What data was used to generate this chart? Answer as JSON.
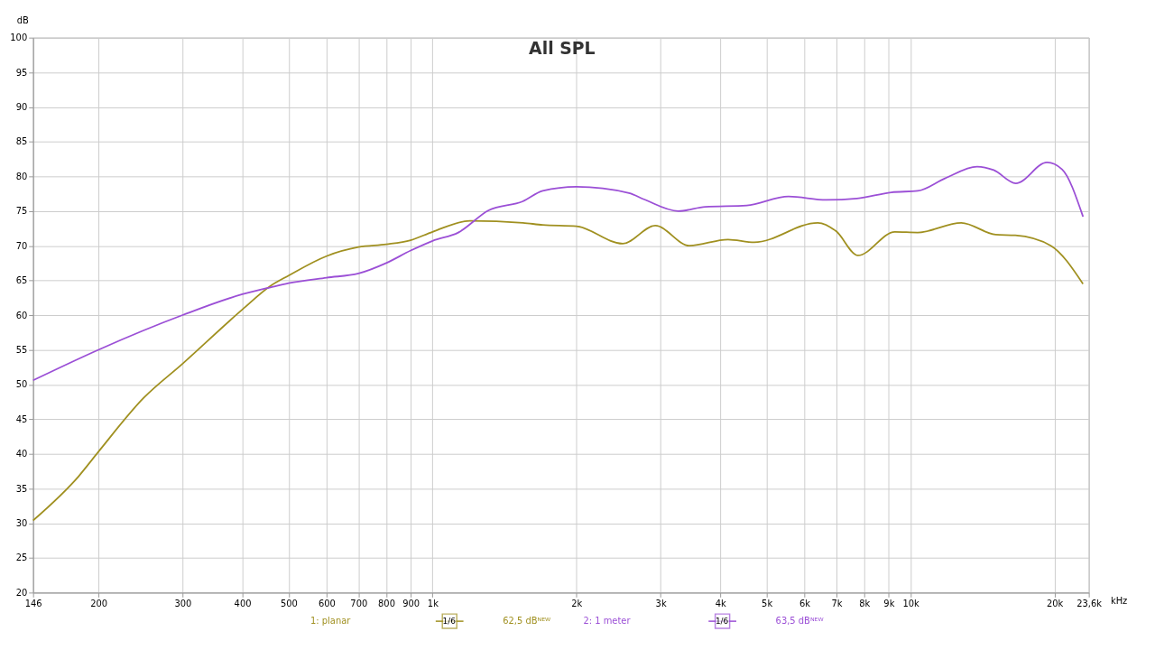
{
  "chart_data": {
    "type": "line",
    "title": "All SPL",
    "ylabel": "dB",
    "x": [
      146,
      182,
      200,
      249,
      300,
      400,
      458,
      500,
      600,
      700,
      800,
      900,
      1000,
      1132,
      1197,
      1310,
      1545,
      1700,
      2000,
      2500,
      2577,
      2768,
      2924,
      3266,
      3448,
      3722,
      4150,
      4541,
      4710,
      5556,
      6397,
      6667,
      6986,
      7727,
      7762,
      9116,
      9270,
      10350,
      11800,
      12770,
      13780,
      14930,
      15070,
      16560,
      16600,
      19300,
      19660,
      20750,
      22950
    ],
    "series": [
      {
        "name": "1: planar",
        "color": "#a09020",
        "values": [
          30.4,
          36.8,
          40.3,
          48.1,
          53.0,
          60.8,
          64.2,
          65.7,
          68.5,
          69.8,
          70.2,
          70.8,
          72.0,
          null,
          73.6,
          null,
          73.3,
          73.0,
          72.8,
          70.3,
          null,
          null,
          72.9,
          null,
          70.0,
          null,
          70.9,
          null,
          70.5,
          null,
          73.3,
          null,
          72.1,
          null,
          68.6,
          null,
          72.0,
          71.9,
          null,
          73.3,
          null,
          null,
          71.6,
          71.5,
          null,
          null,
          70.0,
          null,
          64.5
        ]
      },
      {
        "name": "2: 1 meter",
        "color": "#9b4fd6",
        "values": [
          50.6,
          null,
          55.0,
          null,
          60.0,
          63.0,
          64.0,
          64.6,
          65.4,
          66.0,
          67.5,
          69.3,
          70.7,
          71.9,
          null,
          75.1,
          76.4,
          77.9,
          78.5,
          null,
          77.6,
          76.7,
          null,
          75.0,
          null,
          75.6,
          null,
          75.8,
          null,
          77.1,
          null,
          76.6,
          null,
          76.8,
          null,
          77.7,
          null,
          77.9,
          79.7,
          null,
          81.4,
          80.9,
          null,
          null,
          79.0,
          82.0,
          null,
          81.0,
          74.2
        ]
      }
    ],
    "xlim": [
      146,
      23600
    ],
    "xticks": [
      146,
      200,
      300,
      400,
      500,
      600,
      700,
      800,
      900,
      {
        "value": 1000,
        "label": "1k"
      },
      {
        "value": 2000,
        "label": "2k"
      },
      {
        "value": 3000,
        "label": "3k"
      },
      {
        "value": 4000,
        "label": "4k"
      },
      {
        "value": 5000,
        "label": "5k"
      },
      {
        "value": 6000,
        "label": "6k"
      },
      {
        "value": 7000,
        "label": "7k"
      },
      {
        "value": 8000,
        "label": "8k"
      },
      {
        "value": 9000,
        "label": "9k"
      },
      {
        "value": 10000,
        "label": "10k"
      },
      {
        "value": 20000,
        "label": "20k"
      },
      {
        "value": 23600,
        "label": "23,6k"
      }
    ],
    "xlabel": "kHz",
    "ylim": [
      20,
      100
    ],
    "yticks": [
      20,
      25,
      30,
      35,
      40,
      45,
      50,
      55,
      60,
      65,
      70,
      75,
      80,
      85,
      90,
      95,
      100
    ],
    "log": "x",
    "grid": true,
    "legend": "bottom",
    "marker": "none",
    "line_style": "solid",
    "annotations": [
      "1/6",
      "62,5 dBᴺᴱᵂ",
      "1/6",
      "63,5 dBᴺᴱᵂ"
    ]
  }
}
